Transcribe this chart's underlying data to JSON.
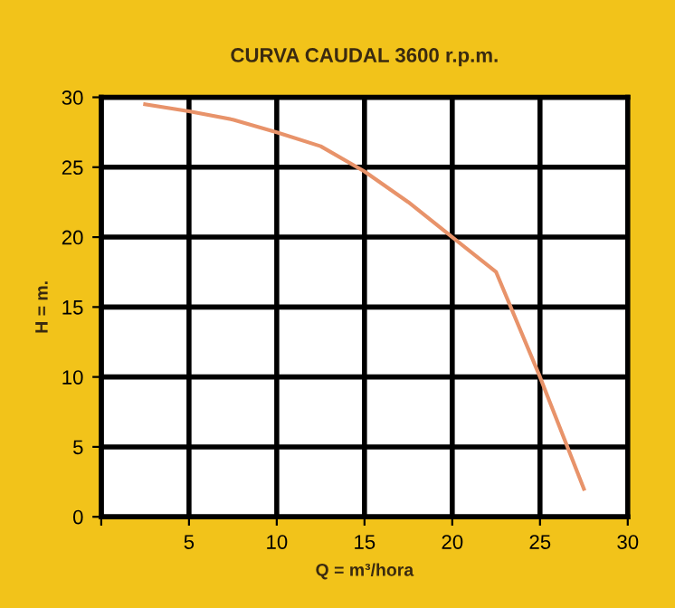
{
  "chart_data": {
    "type": "line",
    "title": "CURVA CAUDAL 3600 r.p.m.",
    "xlabel": "Q = m³/hora",
    "ylabel": "H = m.",
    "x": [
      2.5,
      5,
      7.5,
      10,
      12.5,
      15,
      17.5,
      20,
      22.5,
      25,
      27.5
    ],
    "series": [
      {
        "color": "#e8936a",
        "values": [
          29.5,
          29,
          28.4,
          27.5,
          26.5,
          24.7,
          22.5,
          20,
          17.5,
          10,
          2
        ]
      }
    ],
    "xlim": [
      0,
      30
    ],
    "ylim": [
      0,
      30
    ],
    "xticks": [
      {
        "value": 0,
        "label": null
      },
      5,
      10,
      15,
      20,
      25,
      30
    ],
    "yticks": [
      0,
      5,
      10,
      15,
      20,
      25,
      30
    ],
    "grid": true,
    "marker": "none",
    "line_style": "solid"
  }
}
